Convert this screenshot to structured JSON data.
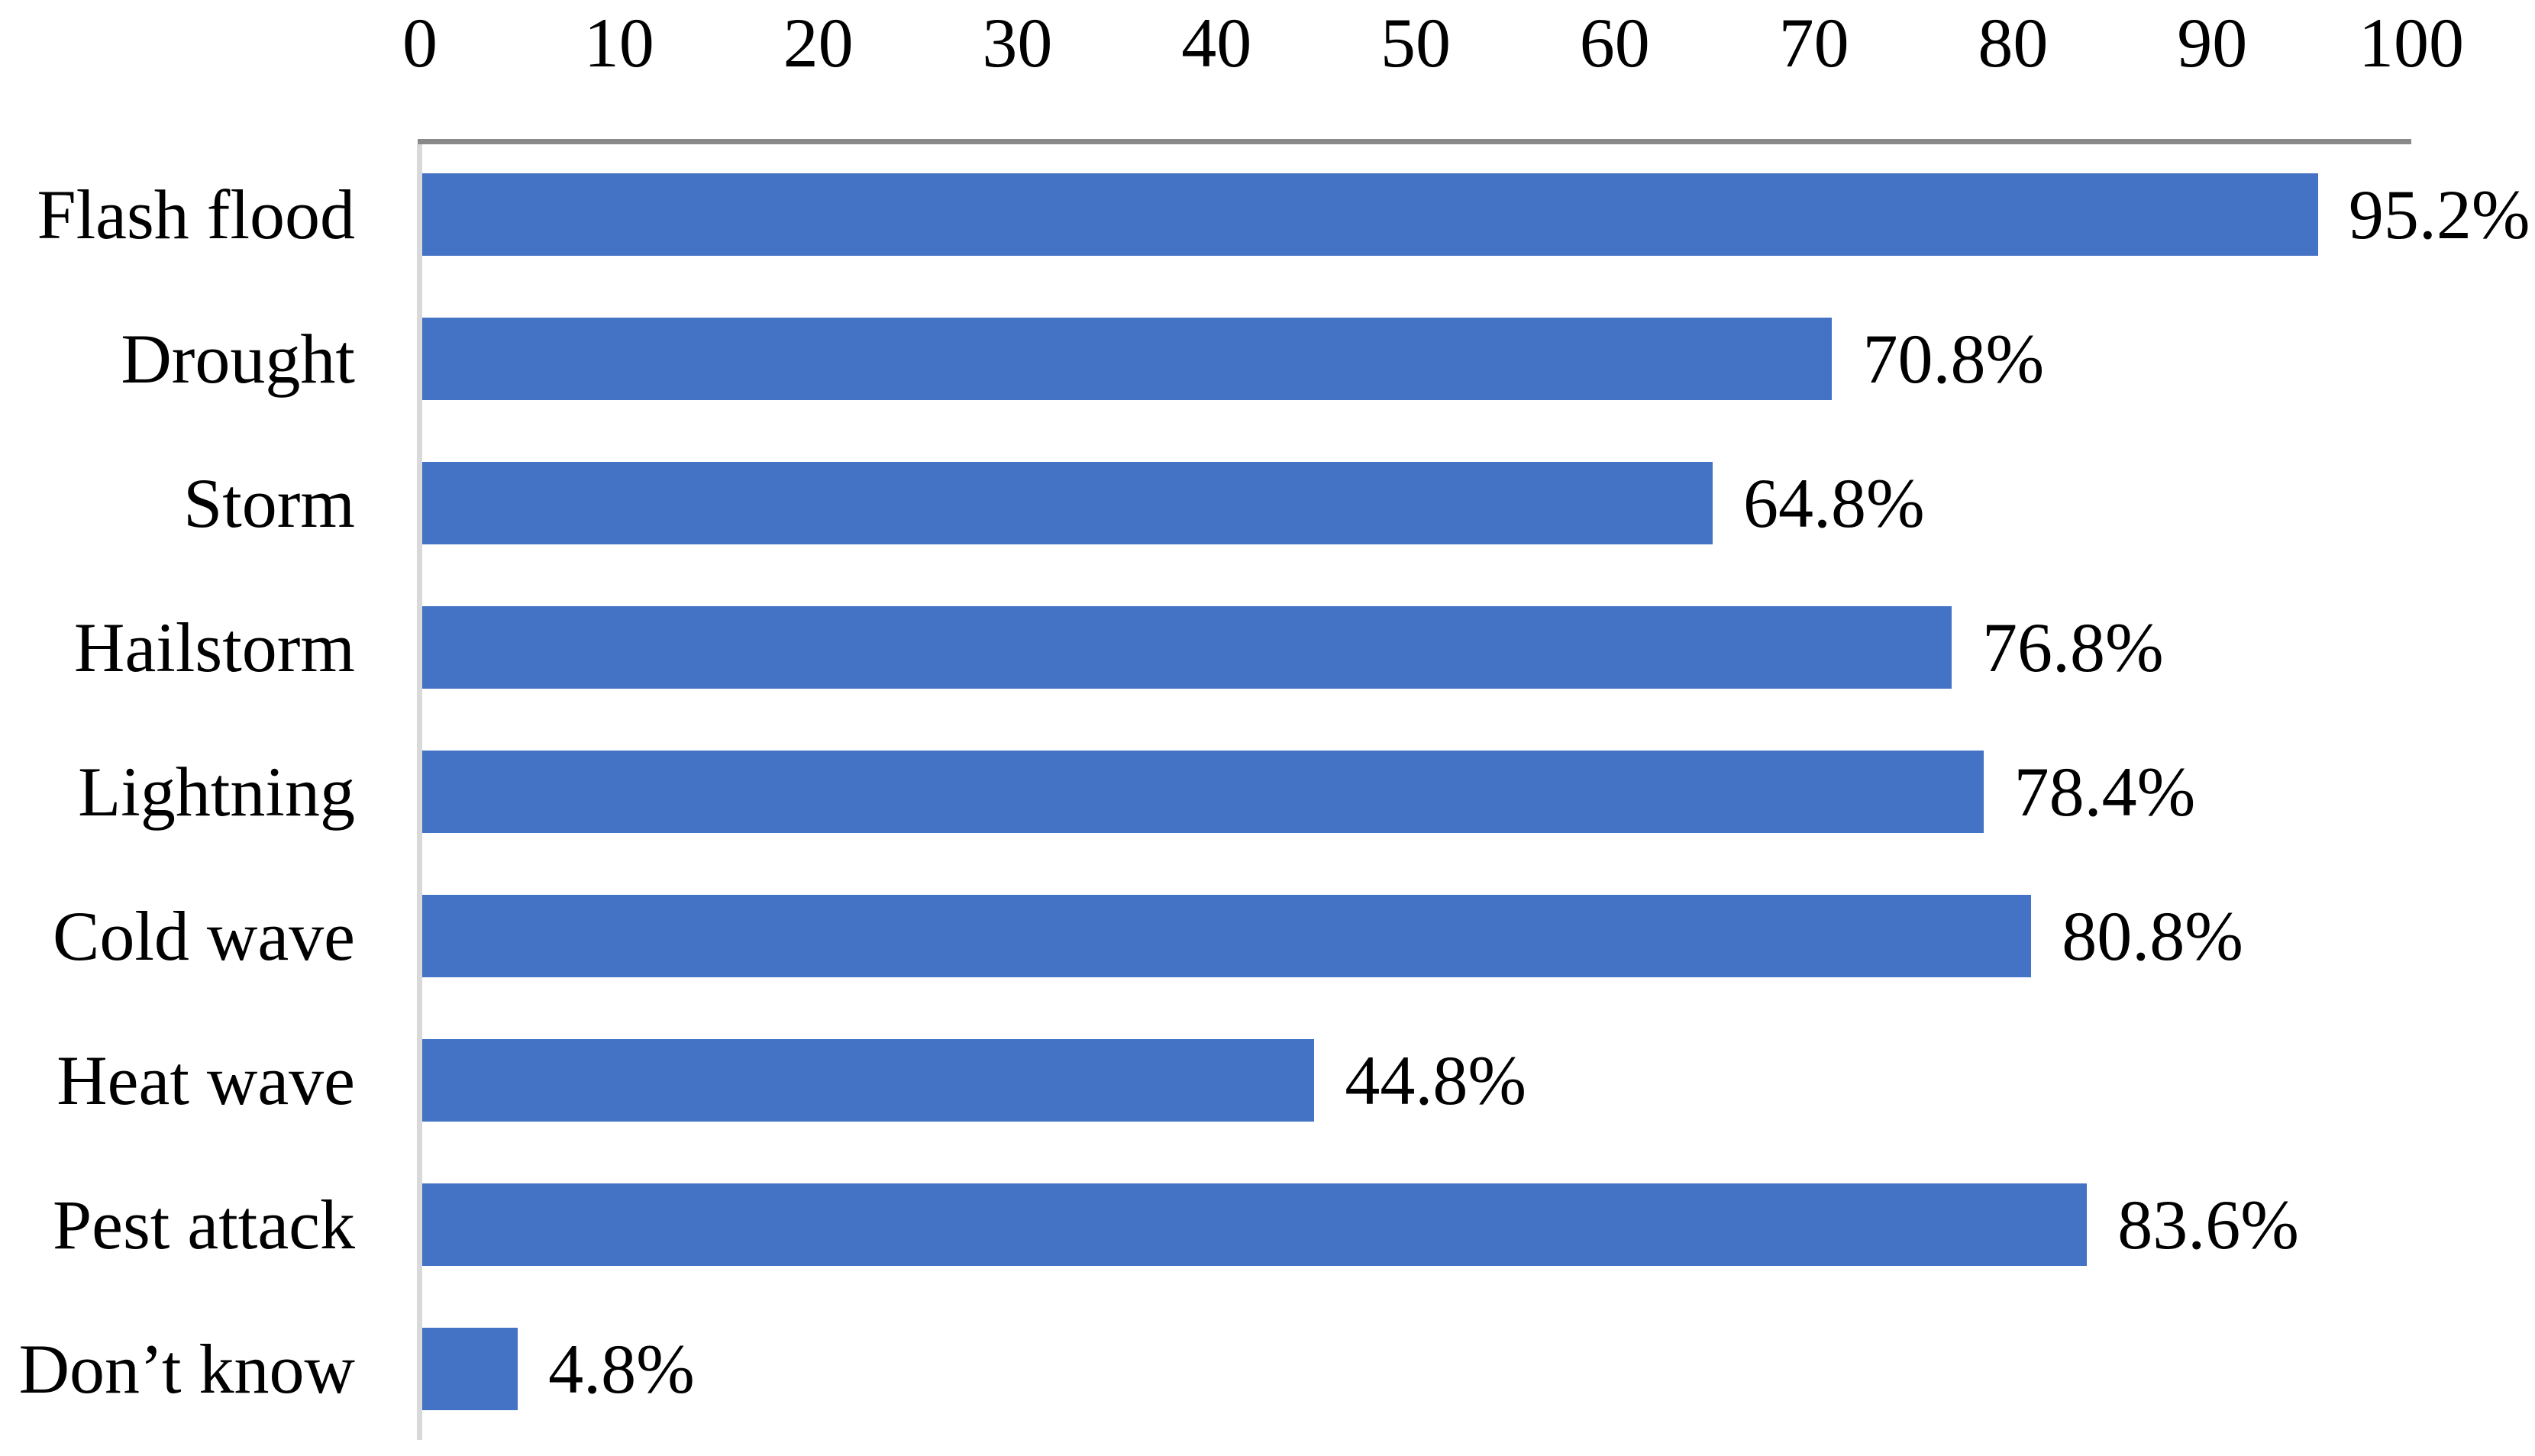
{
  "chart_data": {
    "type": "bar",
    "orientation": "horizontal",
    "title": "",
    "categories": [
      "Flash flood",
      "Drought",
      "Storm",
      "Hailstorm",
      "Lightning",
      "Cold wave",
      "Heat wave",
      "Pest attack",
      "Don’t know"
    ],
    "values": [
      95.2,
      70.8,
      64.8,
      76.8,
      78.4,
      80.8,
      44.8,
      83.6,
      4.8
    ],
    "value_labels": [
      "95.2%",
      "70.8%",
      "64.8%",
      "76.8%",
      "78.4%",
      "80.8%",
      "44.8%",
      "83.6%",
      "4.8%"
    ],
    "xlabel": "",
    "ylabel": "",
    "xlim": [
      0,
      100
    ],
    "xticks": [
      "0",
      "10",
      "20",
      "30",
      "40",
      "50",
      "60",
      "70",
      "80",
      "90",
      "100"
    ],
    "grid": false,
    "legend": null,
    "data_labels_shown": true,
    "tick_labels_position": "top",
    "bar_color": "#4472C4",
    "x_axis_line_color": "#898989",
    "y_axis_line_color": "#D9D9D9",
    "text_color": "#000000",
    "background_color": "#FFFFFF"
  }
}
